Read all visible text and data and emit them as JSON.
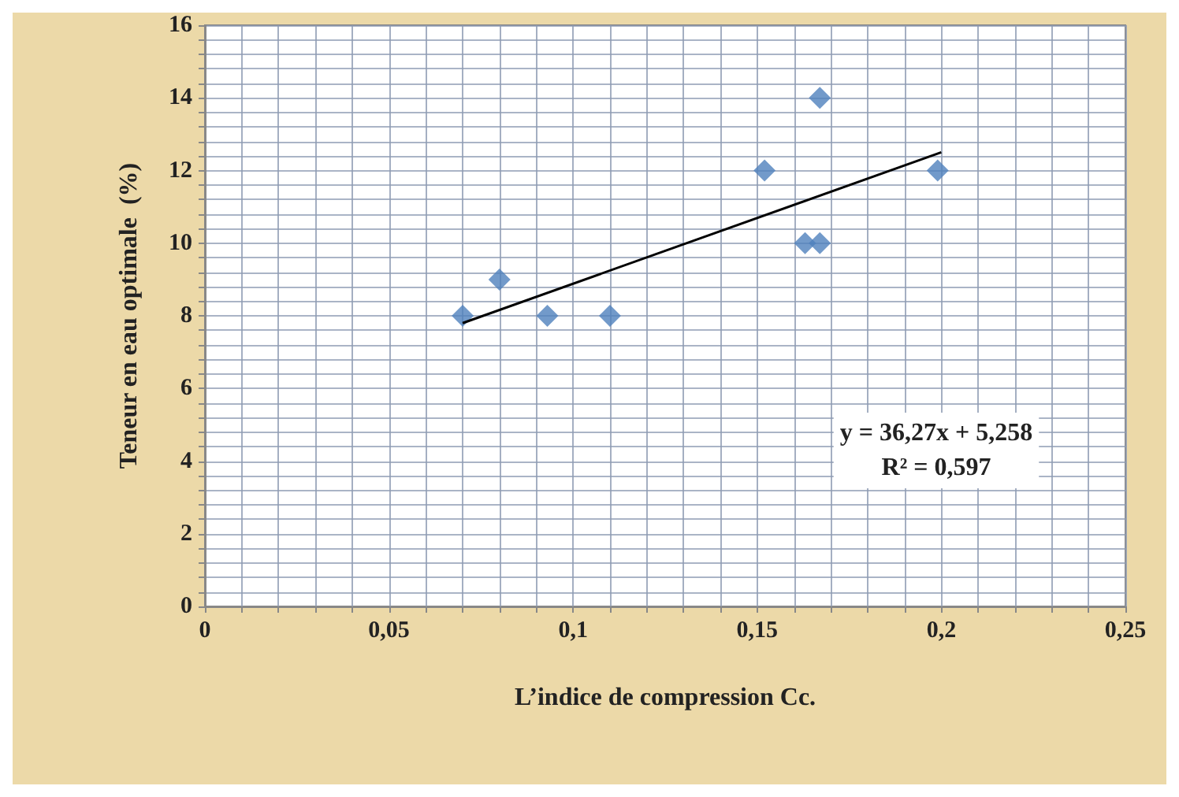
{
  "chart_data": {
    "type": "scatter",
    "xlabel": "L’indice de compression Cc.",
    "ylabel": "Teneur en eau optimale  (%)",
    "xlim": [
      0,
      0.25
    ],
    "xticks": [
      {
        "value": 0,
        "label": "0"
      },
      {
        "value": 0.01,
        "label": null
      },
      {
        "value": 0.02,
        "label": null
      },
      {
        "value": 0.03,
        "label": null
      },
      {
        "value": 0.04,
        "label": null
      },
      {
        "value": 0.05,
        "label": "0,05"
      },
      {
        "value": 0.06,
        "label": null
      },
      {
        "value": 0.07,
        "label": null
      },
      {
        "value": 0.08,
        "label": null
      },
      {
        "value": 0.09,
        "label": null
      },
      {
        "value": 0.1,
        "label": "0,1"
      },
      {
        "value": 0.11,
        "label": null
      },
      {
        "value": 0.12,
        "label": null
      },
      {
        "value": 0.13,
        "label": null
      },
      {
        "value": 0.14,
        "label": null
      },
      {
        "value": 0.15,
        "label": "0,15"
      },
      {
        "value": 0.16,
        "label": null
      },
      {
        "value": 0.17,
        "label": null
      },
      {
        "value": 0.18,
        "label": null
      },
      {
        "value": 0.19,
        "label": null
      },
      {
        "value": 0.2,
        "label": "0,2"
      },
      {
        "value": 0.21,
        "label": null
      },
      {
        "value": 0.22,
        "label": null
      },
      {
        "value": 0.23,
        "label": null
      },
      {
        "value": 0.24,
        "label": null
      },
      {
        "value": 0.25,
        "label": "0,25"
      }
    ],
    "ylim": [
      0,
      16
    ],
    "yticks": [
      0,
      {
        "value": 0.4,
        "label": null
      },
      {
        "value": 0.8,
        "label": null
      },
      {
        "value": 1.2,
        "label": null
      },
      {
        "value": 1.6,
        "label": null
      },
      2,
      {
        "value": 2.4,
        "label": null
      },
      {
        "value": 2.8,
        "label": null
      },
      {
        "value": 3.2,
        "label": null
      },
      {
        "value": 3.6,
        "label": null
      },
      4,
      {
        "value": 4.4,
        "label": null
      },
      {
        "value": 4.8,
        "label": null
      },
      {
        "value": 5.2,
        "label": null
      },
      {
        "value": 5.6,
        "label": null
      },
      6,
      {
        "value": 6.4,
        "label": null
      },
      {
        "value": 6.8,
        "label": null
      },
      {
        "value": 7.2,
        "label": null
      },
      {
        "value": 7.6,
        "label": null
      },
      8,
      {
        "value": 8.4,
        "label": null
      },
      {
        "value": 8.8,
        "label": null
      },
      {
        "value": 9.2,
        "label": null
      },
      {
        "value": 9.6,
        "label": null
      },
      10,
      {
        "value": 10.4,
        "label": null
      },
      {
        "value": 10.8,
        "label": null
      },
      {
        "value": 11.2,
        "label": null
      },
      {
        "value": 11.6,
        "label": null
      },
      12,
      {
        "value": 12.4,
        "label": null
      },
      {
        "value": 12.8,
        "label": null
      },
      {
        "value": 13.2,
        "label": null
      },
      {
        "value": 13.6,
        "label": null
      },
      14,
      {
        "value": 14.4,
        "label": null
      },
      {
        "value": 14.8,
        "label": null
      },
      {
        "value": 15.2,
        "label": null
      },
      {
        "value": 15.6,
        "label": null
      },
      16
    ],
    "grid": true,
    "marker": "diamond",
    "series": [
      {
        "color": "#4f81bd",
        "x": [
          0.07,
          0.08,
          0.093,
          0.11,
          0.152,
          0.163,
          0.167,
          0.167,
          0.199
        ],
        "values": [
          8,
          9,
          8,
          8,
          12,
          10,
          10,
          14,
          12
        ]
      },
      {
        "type": "line",
        "color": "#000000",
        "x": [
          0.07,
          0.2
        ],
        "values": [
          7.8,
          12.5
        ],
        "marker": "none"
      }
    ],
    "annotations": [
      "y = 36,27x + 5,258\nR² = 0,597"
    ]
  }
}
